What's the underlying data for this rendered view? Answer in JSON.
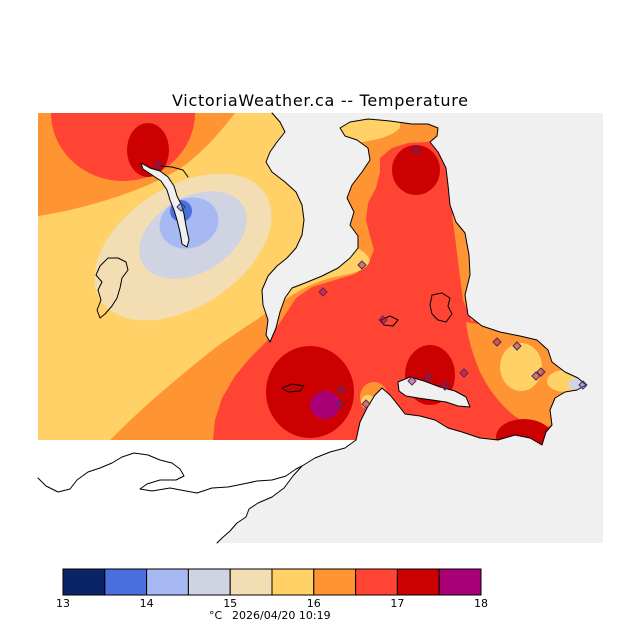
{
  "title": "VictoriaWeather.ca -- Temperature",
  "legend": {
    "ticks": [
      "13",
      "14",
      "15",
      "16",
      "17",
      "18"
    ],
    "bins": [
      {
        "from": 13.0,
        "to": 13.5,
        "color": "#0b2466"
      },
      {
        "from": 13.5,
        "to": 14.0,
        "color": "#4a70e0"
      },
      {
        "from": 14.0,
        "to": 14.5,
        "color": "#a6b9f2"
      },
      {
        "from": 14.5,
        "to": 15.0,
        "color": "#d0d4e2"
      },
      {
        "from": 15.0,
        "to": 15.5,
        "color": "#f2deb2"
      },
      {
        "from": 15.5,
        "to": 16.0,
        "color": "#ffd166"
      },
      {
        "from": 16.0,
        "to": 16.5,
        "color": "#ff9433"
      },
      {
        "from": 16.5,
        "to": 17.0,
        "color": "#ff4433"
      },
      {
        "from": 17.0,
        "to": 17.5,
        "color": "#cc0000"
      },
      {
        "from": 17.5,
        "to": 18.0,
        "color": "#aa0077"
      }
    ]
  },
  "footer": {
    "unit": "°C",
    "timestamp": "2026/04/20 10:19"
  },
  "colors": {
    "water": "#f0f0f0",
    "outside": "#ffffff"
  }
}
